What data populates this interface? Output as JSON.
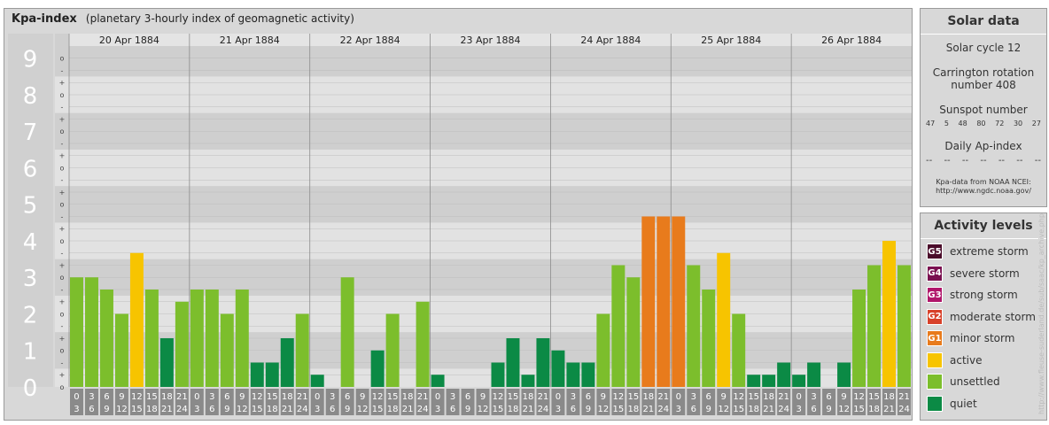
{
  "header": {
    "title": "Kpa-index",
    "subtitle": "(planetary 3-hourly index of geomagnetic activity)"
  },
  "chart_data": {
    "type": "bar",
    "title": "Kpa-index",
    "subtitle": "(planetary 3-hourly index of geomagnetic activity)",
    "ylim": [
      0,
      9.333
    ],
    "y_ticks": [
      "0",
      "1",
      "2",
      "3",
      "4",
      "5",
      "6",
      "7",
      "8",
      "9"
    ],
    "y_minor_ticks": [
      "o",
      "+",
      "-"
    ],
    "days": [
      "20 Apr 1884",
      "21 Apr 1884",
      "22 Apr 1884",
      "23 Apr 1884",
      "24 Apr 1884",
      "25 Apr 1884",
      "26 Apr 1884"
    ],
    "interval_start": [
      "0",
      "3",
      "6",
      "9",
      "12",
      "15",
      "18",
      "21"
    ],
    "interval_end": [
      "3",
      "6",
      "9",
      "12",
      "15",
      "18",
      "21",
      "24"
    ],
    "grid": true,
    "values": [
      3.0,
      3.0,
      2.667,
      2.0,
      3.667,
      2.667,
      1.333,
      2.333,
      2.667,
      2.667,
      2.0,
      2.667,
      0.667,
      0.667,
      1.333,
      2.0,
      0.333,
      0.0,
      3.0,
      0.0,
      1.0,
      2.0,
      0.0,
      2.333,
      0.333,
      0.0,
      0.0,
      0.0,
      0.667,
      1.333,
      0.333,
      1.333,
      1.0,
      0.667,
      0.667,
      2.0,
      3.333,
      3.0,
      4.667,
      4.667,
      4.667,
      3.333,
      2.667,
      3.667,
      2.0,
      0.333,
      0.333,
      0.667,
      0.333,
      0.667,
      0.0,
      0.667,
      2.667,
      3.333,
      4.0,
      3.333
    ],
    "levels": [
      "unsettled",
      "unsettled",
      "unsettled",
      "unsettled",
      "active",
      "unsettled",
      "quiet",
      "unsettled",
      "unsettled",
      "unsettled",
      "unsettled",
      "unsettled",
      "quiet",
      "quiet",
      "quiet",
      "unsettled",
      "quiet",
      "quiet",
      "unsettled",
      "quiet",
      "quiet",
      "unsettled",
      "quiet",
      "unsettled",
      "quiet",
      "quiet",
      "quiet",
      "quiet",
      "quiet",
      "quiet",
      "quiet",
      "quiet",
      "quiet",
      "quiet",
      "quiet",
      "unsettled",
      "unsettled",
      "unsettled",
      "minor storm",
      "minor storm",
      "minor storm",
      "unsettled",
      "unsettled",
      "active",
      "unsettled",
      "quiet",
      "quiet",
      "quiet",
      "quiet",
      "quiet",
      "quiet",
      "quiet",
      "unsettled",
      "unsettled",
      "active",
      "unsettled"
    ]
  },
  "solar": {
    "header": "Solar data",
    "cycle": "Solar cycle 12",
    "carrington_line1": "Carrington rotation",
    "carrington_line2": "number 408",
    "sunspot_label": "Sunspot number",
    "sunspot_values": [
      "47",
      "5",
      "48",
      "80",
      "72",
      "30",
      "27"
    ],
    "ap_label": "Daily Ap-index",
    "ap_values": [
      "--",
      "--",
      "--",
      "--",
      "--",
      "--",
      "--"
    ],
    "source_line1": "Kpa-data from NOAA NCEI:",
    "source_line2": "http://www.ngdc.noaa.gov/"
  },
  "activity": {
    "header": "Activity levels",
    "items": [
      {
        "code": "G5",
        "label": "extreme storm",
        "color": "#4a0b2a"
      },
      {
        "code": "G4",
        "label": "severe storm",
        "color": "#7a1050"
      },
      {
        "code": "G3",
        "label": "strong storm",
        "color": "#b0166a"
      },
      {
        "code": "G2",
        "label": "moderate storm",
        "color": "#d8412a"
      },
      {
        "code": "G1",
        "label": "minor storm",
        "color": "#e87b1c"
      },
      {
        "code": "",
        "label": "active",
        "color": "#f7c400"
      },
      {
        "code": "",
        "label": "unsettled",
        "color": "#7cbe2c"
      },
      {
        "code": "",
        "label": "quiet",
        "color": "#0b8a45"
      }
    ]
  },
  "colors": {
    "quiet": "#0b8a45",
    "unsettled": "#7cbe2c",
    "active": "#f7c400",
    "minor storm": "#e87b1c"
  },
  "watermark": "http://www.fleuse-suderland.de/sub/saac/kp_archive.php"
}
